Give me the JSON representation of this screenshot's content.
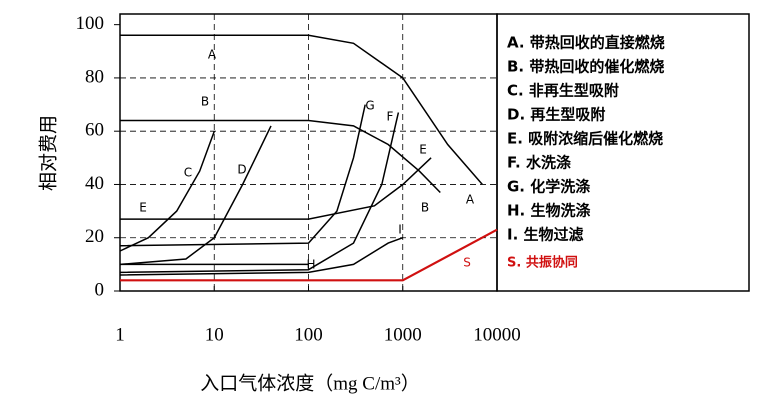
{
  "chart_data": {
    "type": "line",
    "y_label": "相对费用",
    "x_label": "入口气体浓度（mg C/m³）",
    "log_x": true,
    "grid": true,
    "xlim": [
      1,
      10000
    ],
    "xticks": [
      1,
      10,
      100,
      1000,
      10000
    ],
    "ylim": [
      0,
      104
    ],
    "yticks": [
      0,
      20,
      40,
      60,
      80,
      100
    ],
    "series": [
      {
        "name": "A",
        "color": "#000000",
        "x": [
          1,
          100,
          300,
          1000,
          3000,
          7000
        ],
        "values": [
          96,
          96,
          93,
          80,
          55,
          40
        ]
      },
      {
        "name": "B",
        "color": "#000000",
        "x": [
          1,
          100,
          300,
          700,
          1500,
          2500
        ],
        "values": [
          64,
          64,
          62,
          55,
          45,
          37
        ]
      },
      {
        "name": "C",
        "color": "#000000",
        "x": [
          1,
          2,
          4,
          7,
          10
        ],
        "values": [
          15,
          20,
          30,
          45,
          60
        ]
      },
      {
        "name": "D",
        "color": "#000000",
        "x": [
          1,
          5,
          10,
          20,
          40
        ],
        "values": [
          10,
          12,
          20,
          40,
          62
        ]
      },
      {
        "name": "E",
        "color": "#000000",
        "x": [
          1,
          100,
          500,
          1000,
          2000
        ],
        "values": [
          27,
          27,
          32,
          40,
          50
        ]
      },
      {
        "name": "F",
        "color": "#000000",
        "x": [
          1,
          100,
          300,
          600,
          900
        ],
        "values": [
          7,
          8,
          18,
          40,
          67
        ]
      },
      {
        "name": "G",
        "color": "#000000",
        "x": [
          1,
          100,
          200,
          300,
          400
        ],
        "values": [
          17,
          18,
          30,
          50,
          70
        ]
      },
      {
        "name": "H",
        "color": "#000000",
        "x": [
          1,
          100
        ],
        "values": [
          10,
          10
        ]
      },
      {
        "name": "I",
        "color": "#000000",
        "x": [
          1,
          100,
          300,
          700,
          1000
        ],
        "values": [
          6,
          7,
          10,
          18,
          20
        ]
      },
      {
        "name": "S",
        "color": "#d01010",
        "x": [
          1,
          1000,
          10000
        ],
        "values": [
          4,
          4,
          23
        ]
      }
    ],
    "legend": [
      "A.  带热回收的直接燃烧",
      "B.  带热回收的催化燃烧",
      "C.  非再生型吸附",
      "D.  再生型吸附",
      "E.  吸附浓缩后催化燃烧",
      "F.  水洗涤",
      "G.  化学洗涤",
      "H.  生物洗涤",
      "I.  生物过滤",
      "S.  共振协同"
    ]
  }
}
